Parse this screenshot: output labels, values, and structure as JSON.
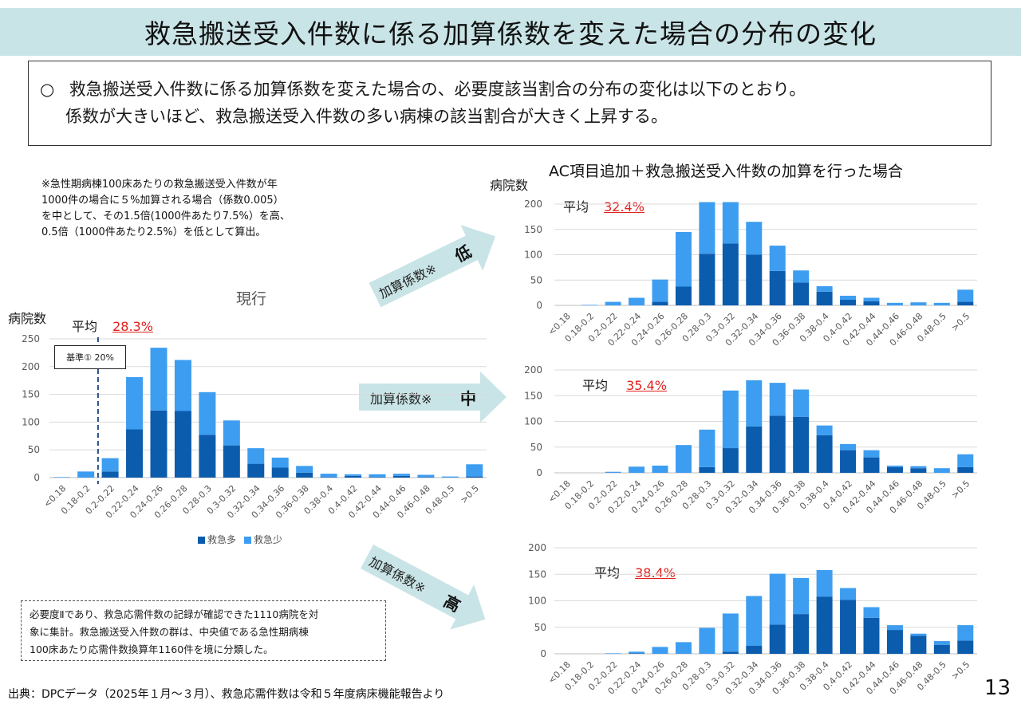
{
  "page": {
    "title": "救急搬送受入件数に係る加算係数を変えた場合の分布の変化",
    "summary": {
      "bullet": "○",
      "line1": "救急搬送受入件数に係る加算係数を変えた場合の、必要度該当割合の分布の変化は以下のとおり。",
      "line2": "係数が大きいほど、救急搬送受入件数の多い病棟の該当割合が大きく上昇する。"
    },
    "note_lines": [
      "※急性期病棟100床あたりの救急搬送受入件数が年",
      "1000件の場合に５%加算される場合（係数0.005）",
      "を中として、その1.5倍(1000件あたり7.5%）を高、",
      "0.5倍（1000件あたり2.5%）を低として算出。"
    ],
    "right_title": "AC項目追加＋救急搬送受入件数の加算を行った場合",
    "arrows": {
      "low": {
        "text": "加算係数※",
        "level": "低"
      },
      "mid": {
        "text": "加算係数※",
        "level": "中"
      },
      "high": {
        "text": "加算係数※",
        "level": "高"
      }
    },
    "method_note": [
      "必要度Ⅱであり、救急応需件数の記録が確認できた1110病院を対",
      "象に集計。救急搬送受入件数の群は、中央値である急性期病棟",
      "100床あたり応需件数換算年1160件を境に分類した。"
    ],
    "source": "出典：DPCデータ（2025年１月～３月）、救急応需件数は令和５年度病床機能報告より",
    "page_number": "13",
    "colors": {
      "title_bg": "#c9e4e6",
      "arrow": "#c9e4e6",
      "dark_series": "#0b5cad",
      "light_series": "#3d9df0",
      "average_value": "#e0211c",
      "grid": "#d9d9d9"
    }
  },
  "chart_data": [
    {
      "id": "current",
      "type": "bar",
      "stacked": true,
      "title": "現行",
      "ylabel": "病院数",
      "ylim": [
        0,
        250
      ],
      "yticks": [
        0,
        50,
        100,
        150,
        200,
        250
      ],
      "average_label": "平均",
      "average_value": "28.3%",
      "reference_line": {
        "label": "基準① 20%",
        "position_between": [
          "0.18-0.2",
          "0.2-0.22"
        ]
      },
      "legend": [
        "救急多",
        "救急少"
      ],
      "legend_position": "bottom",
      "grid": true,
      "categories": [
        "<0.18",
        "0.18-0.2",
        "0.2-0.22",
        "0.22-0.24",
        "0.24-0.26",
        "0.26-0.28",
        "0.28-0.3",
        "0.3-0.32",
        "0.32-0.34",
        "0.34-0.36",
        "0.36-0.38",
        "0.38-0.4",
        "0.4-0.42",
        "0.42-0.44",
        "0.44-0.46",
        "0.46-0.48",
        "0.48-0.5",
        ">0.5"
      ],
      "series": [
        {
          "name": "救急多",
          "values": [
            0,
            0,
            11,
            87,
            121,
            120,
            77,
            58,
            25,
            18,
            9,
            1,
            3,
            1,
            3,
            1,
            0,
            2
          ]
        },
        {
          "name": "救急少",
          "values": [
            1,
            11,
            24,
            94,
            113,
            92,
            77,
            45,
            28,
            18,
            12,
            6,
            3,
            5,
            4,
            4,
            2,
            22
          ]
        }
      ]
    },
    {
      "id": "low",
      "type": "bar",
      "stacked": true,
      "title": "加算係数※ 低",
      "ylabel": "病院数",
      "ylim": [
        0,
        200
      ],
      "yticks": [
        0,
        50,
        100,
        150,
        200
      ],
      "average_label": "平均",
      "average_value": "32.4%",
      "grid": true,
      "categories": [
        "<0.18",
        "0.18-0.2",
        "0.2-0.22",
        "0.22-0.24",
        "0.24-0.26",
        "0.26-0.28",
        "0.28-0.3",
        "0.3-0.32",
        "0.32-0.34",
        "0.34-0.36",
        "0.36-0.38",
        "0.38-0.4",
        "0.4-0.42",
        "0.42-0.44",
        "0.44-0.46",
        "0.46-0.48",
        "0.48-0.5",
        ">0.5"
      ],
      "series": [
        {
          "name": "救急多",
          "values": [
            0,
            0,
            0,
            0,
            7,
            37,
            102,
            122,
            100,
            68,
            45,
            27,
            11,
            8,
            0,
            0,
            0,
            7
          ]
        },
        {
          "name": "救急少",
          "values": [
            0,
            1,
            7,
            15,
            44,
            108,
            102,
            82,
            65,
            50,
            24,
            11,
            8,
            7,
            5,
            6,
            5,
            24
          ]
        }
      ]
    },
    {
      "id": "mid",
      "type": "bar",
      "stacked": true,
      "title": "加算係数※ 中",
      "ylim": [
        0,
        200
      ],
      "yticks": [
        0,
        50,
        100,
        150,
        200
      ],
      "average_label": "平均",
      "average_value": "35.4%",
      "grid": true,
      "categories": [
        "<0.18",
        "0.18-0.2",
        "0.2-0.22",
        "0.22-0.24",
        "0.24-0.26",
        "0.26-0.28",
        "0.28-0.3",
        "0.3-0.32",
        "0.32-0.34",
        "0.34-0.36",
        "0.36-0.38",
        "0.38-0.4",
        "0.4-0.42",
        "0.42-0.44",
        "0.44-0.46",
        "0.46-0.48",
        "0.48-0.5",
        ">0.5"
      ],
      "series": [
        {
          "name": "救急多",
          "values": [
            0,
            0,
            0,
            0,
            0,
            0,
            11,
            48,
            90,
            111,
            109,
            73,
            44,
            30,
            11,
            9,
            0,
            11
          ]
        },
        {
          "name": "救急少",
          "values": [
            0,
            0,
            2,
            12,
            14,
            54,
            73,
            112,
            90,
            64,
            53,
            19,
            12,
            14,
            3,
            4,
            9,
            25
          ]
        }
      ]
    },
    {
      "id": "high",
      "type": "bar",
      "stacked": true,
      "title": "加算係数※ 高",
      "ylim": [
        0,
        200
      ],
      "yticks": [
        0,
        50,
        100,
        150,
        200
      ],
      "average_label": "平均",
      "average_value": "38.4%",
      "grid": true,
      "categories": [
        "<0.18",
        "0.18-0.2",
        "0.2-0.22",
        "0.22-0.24",
        "0.24-0.26",
        "0.26-0.28",
        "0.28-0.3",
        "0.3-0.32",
        "0.32-0.34",
        "0.34-0.36",
        "0.36-0.38",
        "0.38-0.4",
        "0.4-0.42",
        "0.42-0.44",
        "0.44-0.46",
        "0.46-0.48",
        "0.48-0.5",
        ">0.5"
      ],
      "series": [
        {
          "name": "救急多",
          "values": [
            0,
            0,
            0,
            1,
            0,
            0,
            0,
            4,
            15,
            55,
            75,
            108,
            102,
            68,
            45,
            34,
            17,
            25
          ]
        },
        {
          "name": "救急少",
          "values": [
            0,
            0,
            1,
            3,
            13,
            22,
            49,
            72,
            94,
            96,
            68,
            50,
            22,
            20,
            9,
            4,
            7,
            29
          ]
        }
      ]
    }
  ]
}
